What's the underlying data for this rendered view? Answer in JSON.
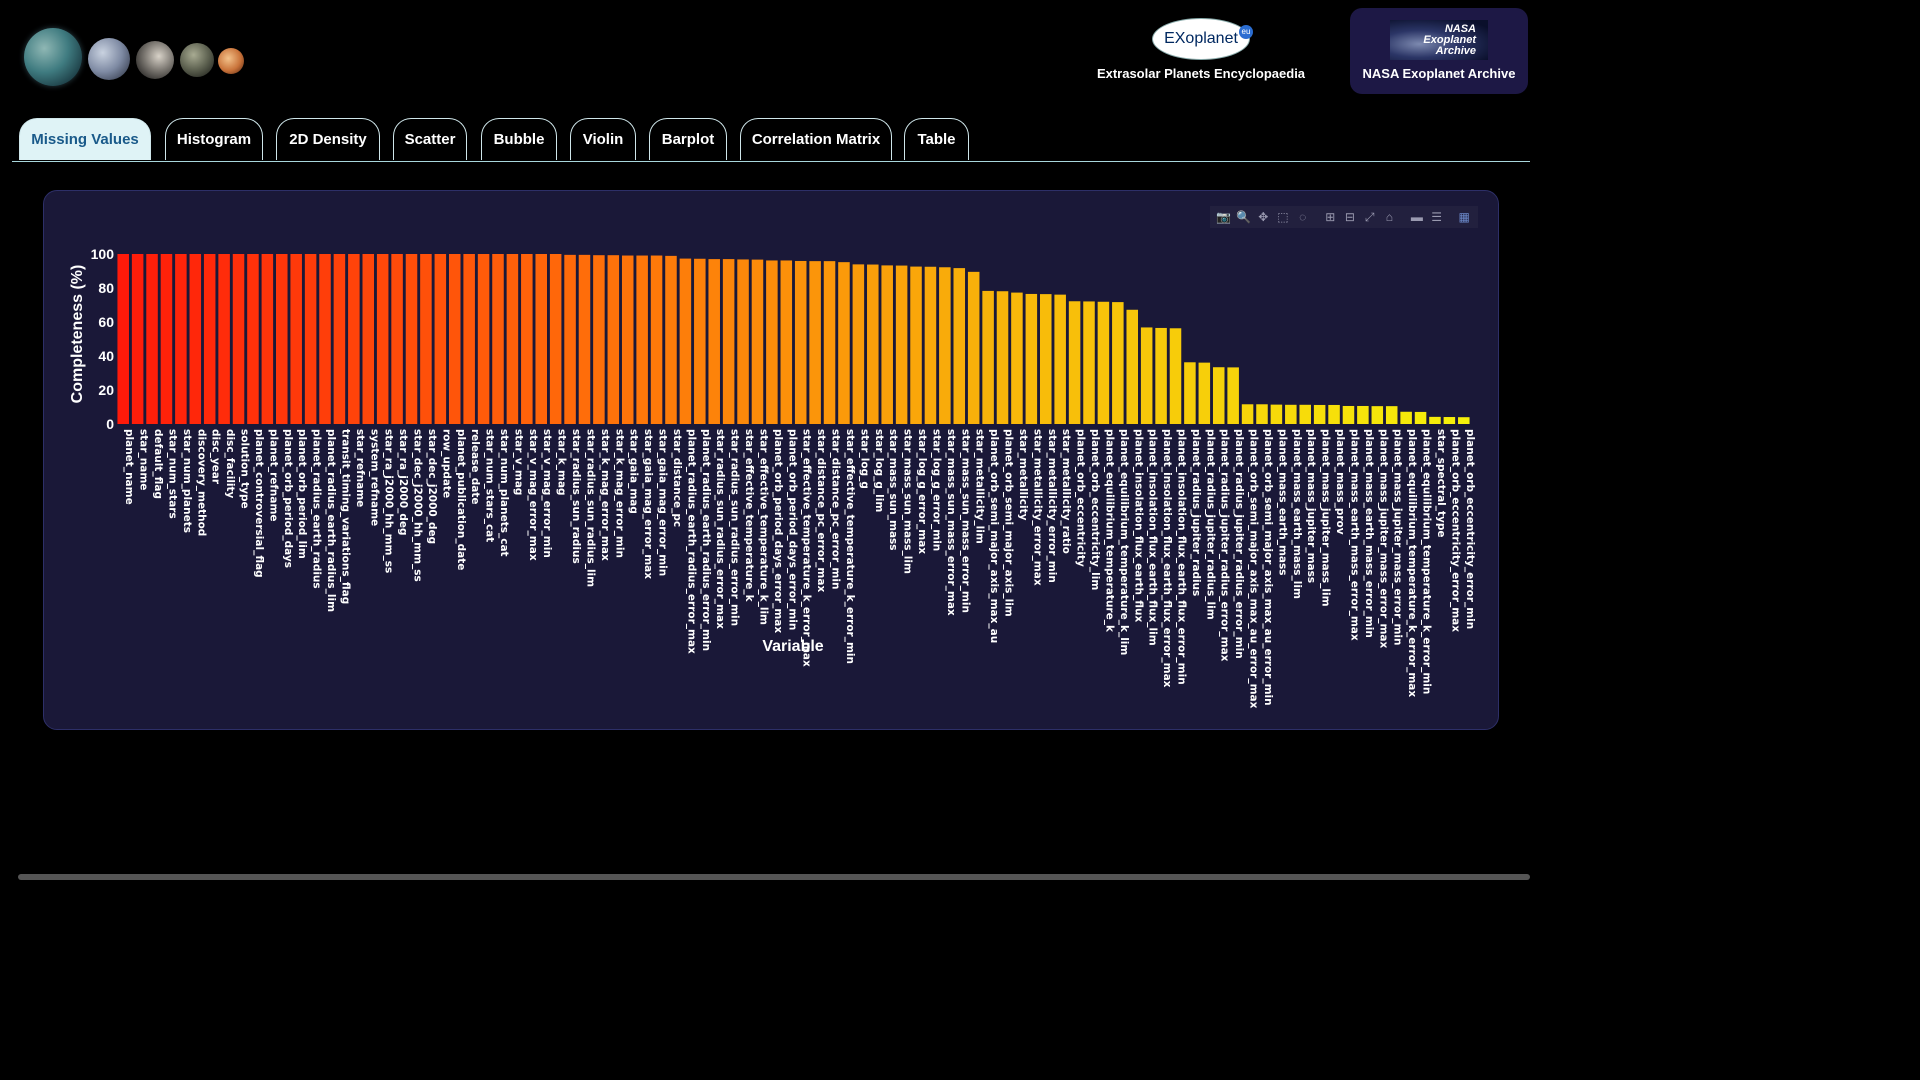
{
  "header": {
    "exoplanet_logo_text": "EXoplanet",
    "exoplanet_logo_badge": "eu",
    "exoplanet_caption": "Extrasolar Planets Encyclopaedia",
    "nasa_logo_text": [
      "NASA",
      "Exoplanet",
      "Archive"
    ],
    "nasa_caption": "NASA Exoplanet Archive"
  },
  "tabs": [
    {
      "label": "Missing Values",
      "active": true
    },
    {
      "label": "Histogram",
      "active": false
    },
    {
      "label": "2D Density",
      "active": false
    },
    {
      "label": "Scatter",
      "active": false
    },
    {
      "label": "Bubble",
      "active": false
    },
    {
      "label": "Violin",
      "active": false
    },
    {
      "label": "Barplot",
      "active": false
    },
    {
      "label": "Correlation Matrix",
      "active": false
    },
    {
      "label": "Table",
      "active": false
    }
  ],
  "modebar": [
    "camera-icon",
    "zoom-icon",
    "pan-icon",
    "box-select-icon",
    "lasso-icon",
    "zoom-in-icon",
    "zoom-out-icon",
    "autoscale-icon",
    "home-icon",
    "spike-icon",
    "compare-icon",
    "plotly-logo-icon"
  ],
  "colors": {
    "background": "#000000",
    "panel": "#1a1838",
    "bar_gradient": [
      "#ff1a0a",
      "#ff6a0a",
      "#f8b80a",
      "#f6f00a"
    ],
    "active_tab_bg": "#dff3f6",
    "active_tab_text": "#1a5a8a"
  },
  "chart_data": {
    "type": "bar",
    "xlabel": "Variable",
    "ylabel": "Completeness (%)",
    "ylim": [
      0,
      100
    ],
    "yticks": [
      0,
      20,
      40,
      60,
      80,
      100
    ],
    "grid": false,
    "categories": [
      "planet_name",
      "star_name",
      "default_flag",
      "star_num_stars",
      "star_num_planets",
      "discovery_method",
      "disc_year",
      "disc_facility",
      "solution_type",
      "planet_controversial_flag",
      "planet_refname",
      "planet_orb_period_days",
      "planet_orb_period_lim",
      "planet_radius_earth_radius",
      "planet_radius_earth_radius_lim",
      "transit_timing_variations_flag",
      "star_refname",
      "system_refname",
      "star_ra_j2000_hh_mm_ss",
      "star_ra_j2000_deg",
      "star_dec_j2000_hh_mm_ss",
      "star_dec_j2000_deg",
      "row_update",
      "planet_publication_date",
      "release_date",
      "star_num_stars_cat",
      "star_num_planets_cat",
      "star_v_mag",
      "star_v_mag_error_max",
      "star_v_mag_error_min",
      "star_k_mag",
      "star_radius_sun_radius",
      "star_radius_sun_radius_lim",
      "star_k_mag_error_max",
      "star_k_mag_error_min",
      "star_gaia_mag",
      "star_gaia_mag_error_max",
      "star_gaia_mag_error_min",
      "star_distance_pc",
      "planet_radius_earth_radius_error_max",
      "planet_radius_earth_radius_error_min",
      "star_radius_sun_radius_error_max",
      "star_radius_sun_radius_error_min",
      "star_effective_temperature_k",
      "star_effective_temperature_k_lim",
      "planet_orb_period_days_error_max",
      "planet_orb_period_days_error_min",
      "star_effective_temperature_k_error_max",
      "star_distance_pc_error_max",
      "star_distance_pc_error_min",
      "star_effective_temperature_k_error_min",
      "star_log_g",
      "star_log_g_lim",
      "star_mass_sun_mass",
      "star_mass_sun_mass_lim",
      "star_log_g_error_max",
      "star_log_g_error_min",
      "star_mass_sun_mass_error_max",
      "star_mass_sun_mass_error_min",
      "star_metallicity_lim",
      "planet_orb_semi_major_axis_max_au",
      "planet_orb_semi_major_axis_lim",
      "star_metallicity",
      "star_metallicity_error_max",
      "star_metallicity_error_min",
      "star_metallicity_ratio",
      "planet_orb_eccentricity",
      "planet_orb_eccentricity_lim",
      "planet_equilibrium_temperature_k",
      "planet_equilibrium_temperature_k_lim",
      "planet_insolation_flux_earth_flux",
      "planet_insolation_flux_earth_flux_lim",
      "planet_insolation_flux_earth_flux_error_max",
      "planet_insolation_flux_earth_flux_error_min",
      "planet_radius_jupiter_radius",
      "planet_radius_jupiter_radius_lim",
      "planet_radius_jupiter_radius_error_max",
      "planet_radius_jupiter_radius_error_min",
      "planet_orb_semi_major_axis_max_au_error_max",
      "planet_orb_semi_major_axis_max_au_error_min",
      "planet_mass_earth_mass",
      "planet_mass_earth_mass_lim",
      "planet_mass_jupiter_mass",
      "planet_mass_jupiter_mass_lim",
      "planet_mass_prov",
      "planet_mass_earth_mass_error_max",
      "planet_mass_earth_mass_error_min",
      "planet_mass_jupiter_mass_error_max",
      "planet_mass_jupiter_mass_error_min",
      "planet_equilibrium_temperature_k_error_max",
      "planet_equilibrium_temperature_k_error_min",
      "star_spectral_type",
      "planet_orb_eccentricity_error_max",
      "planet_orb_eccentricity_error_min"
    ],
    "values": [
      100,
      100,
      100,
      100,
      100,
      100,
      100,
      100,
      100,
      100,
      100,
      100,
      100,
      100,
      100,
      100,
      100,
      100,
      100,
      100,
      100,
      100,
      100,
      100,
      100,
      100,
      100,
      100,
      100,
      100,
      100,
      99.5,
      99.5,
      99.3,
      99.3,
      99.1,
      99.1,
      99.1,
      98.9,
      97.3,
      97.2,
      97.0,
      97.0,
      96.8,
      96.7,
      96.2,
      96.2,
      95.9,
      95.8,
      95.8,
      95.2,
      93.9,
      93.8,
      93.3,
      93.2,
      92.6,
      92.5,
      92.2,
      91.7,
      89.5,
      78.3,
      78.1,
      77.3,
      76.5,
      76.4,
      76.1,
      72.2,
      72.1,
      71.9,
      71.7,
      67.2,
      56.8,
      56.5,
      56.3,
      36.3,
      36.1,
      33.4,
      33.3,
      11.6,
      11.6,
      11.4,
      11.3,
      11.3,
      11.2,
      11.2,
      10.6,
      10.6,
      10.5,
      10.5,
      7.2,
      7.1,
      4.2,
      4.1,
      4.0
    ]
  }
}
